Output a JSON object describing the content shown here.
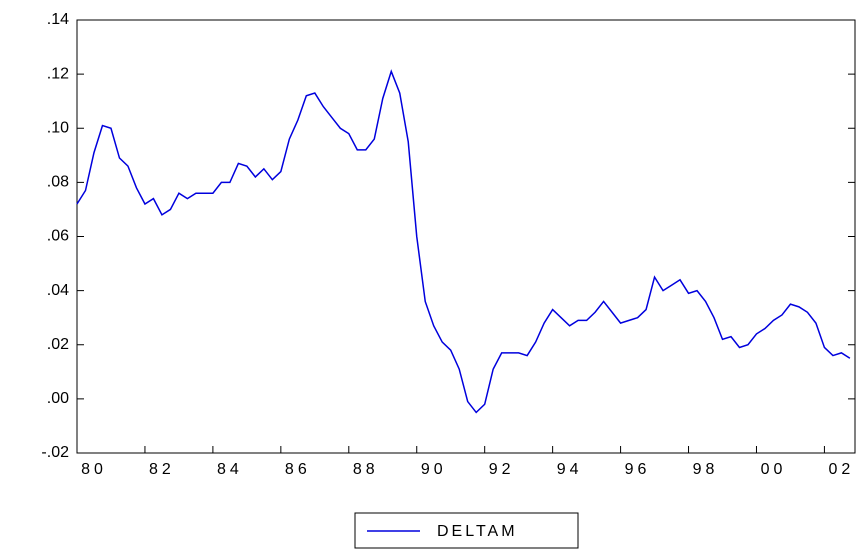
{
  "chart_data": {
    "type": "line",
    "x": [
      1980,
      1980.25,
      1980.5,
      1980.75,
      1981,
      1981.25,
      1981.5,
      1981.75,
      1982,
      1982.25,
      1982.5,
      1982.75,
      1983,
      1983.25,
      1983.5,
      1983.75,
      1984,
      1984.25,
      1984.5,
      1984.75,
      1985,
      1985.25,
      1985.5,
      1985.75,
      1986,
      1986.25,
      1986.5,
      1986.75,
      1987,
      1987.25,
      1987.5,
      1987.75,
      1988,
      1988.25,
      1988.5,
      1988.75,
      1989,
      1989.25,
      1989.5,
      1989.75,
      1990,
      1990.25,
      1990.5,
      1990.75,
      1991,
      1991.25,
      1991.5,
      1991.75,
      1992,
      1992.25,
      1992.5,
      1992.75,
      1993,
      1993.25,
      1993.5,
      1993.75,
      1994,
      1994.25,
      1994.5,
      1994.75,
      1995,
      1995.25,
      1995.5,
      1995.75,
      1996,
      1996.25,
      1996.5,
      1996.75,
      1997,
      1997.25,
      1997.5,
      1997.75,
      1998,
      1998.25,
      1998.5,
      1998.75,
      1999,
      1999.25,
      1999.5,
      1999.75,
      2000,
      2000.25,
      2000.5,
      2000.75,
      2001,
      2001.25,
      2001.5,
      2001.75,
      2002,
      2002.25,
      2002.5,
      2002.75
    ],
    "series": [
      {
        "name": "DELTAM",
        "color": "#0000dd",
        "values": [
          0.072,
          0.077,
          0.091,
          0.101,
          0.1,
          0.089,
          0.086,
          0.078,
          0.072,
          0.074,
          0.068,
          0.07,
          0.076,
          0.074,
          0.076,
          0.076,
          0.076,
          0.08,
          0.08,
          0.087,
          0.086,
          0.082,
          0.085,
          0.081,
          0.084,
          0.096,
          0.103,
          0.112,
          0.113,
          0.108,
          0.104,
          0.1,
          0.098,
          0.092,
          0.092,
          0.096,
          0.111,
          0.121,
          0.113,
          0.095,
          0.06,
          0.036,
          0.027,
          0.021,
          0.018,
          0.011,
          -0.001,
          -0.005,
          -0.002,
          0.011,
          0.017,
          0.017,
          0.017,
          0.016,
          0.021,
          0.028,
          0.033,
          0.03,
          0.027,
          0.029,
          0.029,
          0.032,
          0.036,
          0.032,
          0.028,
          0.029,
          0.03,
          0.033,
          0.045,
          0.04,
          0.042,
          0.044,
          0.039,
          0.04,
          0.036,
          0.03,
          0.022,
          0.023,
          0.019,
          0.02,
          0.024,
          0.026,
          0.029,
          0.031,
          0.035,
          0.034,
          0.032,
          0.028,
          0.019,
          0.016,
          0.017,
          0.015
        ]
      }
    ],
    "xlim": [
      1980,
      2002.9
    ],
    "xticks": [
      {
        "value": 1980,
        "label": "80"
      },
      {
        "value": 1982,
        "label": "82"
      },
      {
        "value": 1984,
        "label": "84"
      },
      {
        "value": 1986,
        "label": "86"
      },
      {
        "value": 1988,
        "label": "88"
      },
      {
        "value": 1990,
        "label": "90"
      },
      {
        "value": 1992,
        "label": "92"
      },
      {
        "value": 1994,
        "label": "94"
      },
      {
        "value": 1996,
        "label": "96"
      },
      {
        "value": 1998,
        "label": "98"
      },
      {
        "value": 2000,
        "label": "00"
      },
      {
        "value": 2002,
        "label": "02"
      }
    ],
    "ylim": [
      -0.02,
      0.14
    ],
    "yticks": [
      {
        "value": -0.02,
        "label": "-.02"
      },
      {
        "value": 0,
        "label": ".00"
      },
      {
        "value": 0.02,
        "label": ".02"
      },
      {
        "value": 0.04,
        "label": ".04"
      },
      {
        "value": 0.06,
        "label": ".06"
      },
      {
        "value": 0.08,
        "label": ".08"
      },
      {
        "value": 0.1,
        "label": ".10"
      },
      {
        "value": 0.12,
        "label": ".12"
      },
      {
        "value": 0.14,
        "label": ".14"
      }
    ],
    "grid": false
  }
}
